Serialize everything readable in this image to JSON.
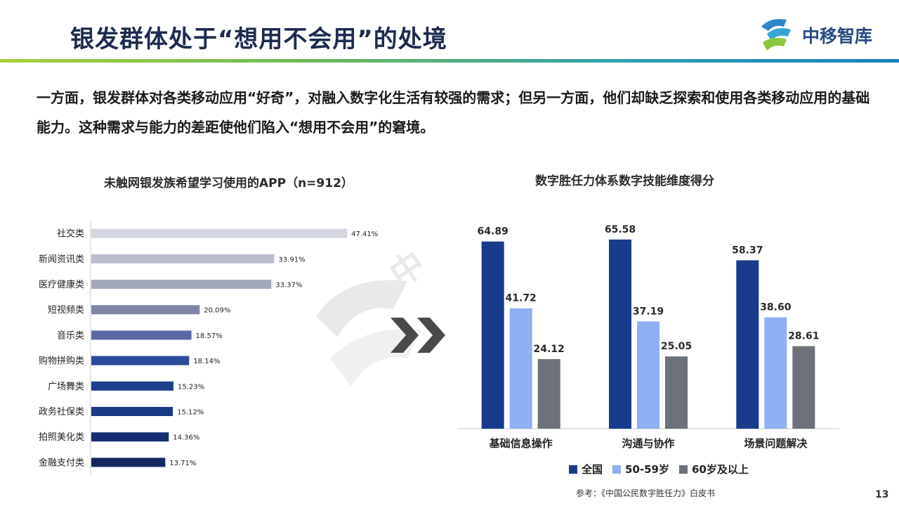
{
  "slide": {
    "title": "银发群体处于“想用不会用”的处境",
    "logo_text": "中移智库",
    "intro": "一方面，银发群体对各类移动应用“好奇”，对融入数字化生活有较强的需求；但另一方面，他们却缺乏探索和使用各类移动应用的基础能力。这种需求与能力的差距使他们陷入“想用不会用”的窘境。",
    "source": "参考：《中国公民数字胜任力》白皮书",
    "page_number": "13"
  },
  "chart_data": [
    {
      "type": "bar",
      "orientation": "horizontal",
      "title": "未触网银发族希望学习使用的APP（n=912）",
      "categories": [
        "社交类",
        "新闻资讯类",
        "医疗健康类",
        "短视频类",
        "音乐类",
        "购物拼购类",
        "广场舞类",
        "政务社保类",
        "拍照美化类",
        "金融支付类"
      ],
      "values": [
        47.41,
        33.91,
        33.37,
        20.09,
        18.57,
        18.14,
        15.23,
        15.12,
        14.36,
        13.71
      ],
      "value_labels": [
        "47.41%",
        "33.91%",
        "33.37%",
        "20.09%",
        "18.57%",
        "18.14%",
        "15.23%",
        "15.12%",
        "14.36%",
        "13.71%"
      ],
      "bar_colors": [
        "#d3d6de",
        "#b9bdcc",
        "#a5a9bc",
        "#7f86a8",
        "#5a68a3",
        "#2a4a9a",
        "#1d3f8e",
        "#1a3a86",
        "#172f72",
        "#14285f"
      ],
      "xlim": [
        0,
        50
      ],
      "grid": false
    },
    {
      "type": "bar",
      "title": "数字胜任力体系数字技能维度得分",
      "categories": [
        "基础信息操作",
        "沟通与协作",
        "场景问题解决"
      ],
      "series": [
        {
          "name": "全国",
          "values": [
            64.89,
            65.58,
            58.37
          ],
          "labels": [
            "64.89",
            "65.58",
            "58.37"
          ],
          "color": "#183b8c"
        },
        {
          "name": "50-59岁",
          "values": [
            41.72,
            37.19,
            38.6
          ],
          "labels": [
            "41.72",
            "37.19",
            "38.60"
          ],
          "color": "#8fb0f2"
        },
        {
          "name": "60岁及以上",
          "values": [
            24.12,
            25.05,
            28.61
          ],
          "labels": [
            "24.12",
            "25.05",
            "28.61"
          ],
          "color": "#6d7179"
        }
      ],
      "ylim": [
        0,
        70
      ],
      "legend": "bottom",
      "grid": false
    }
  ]
}
